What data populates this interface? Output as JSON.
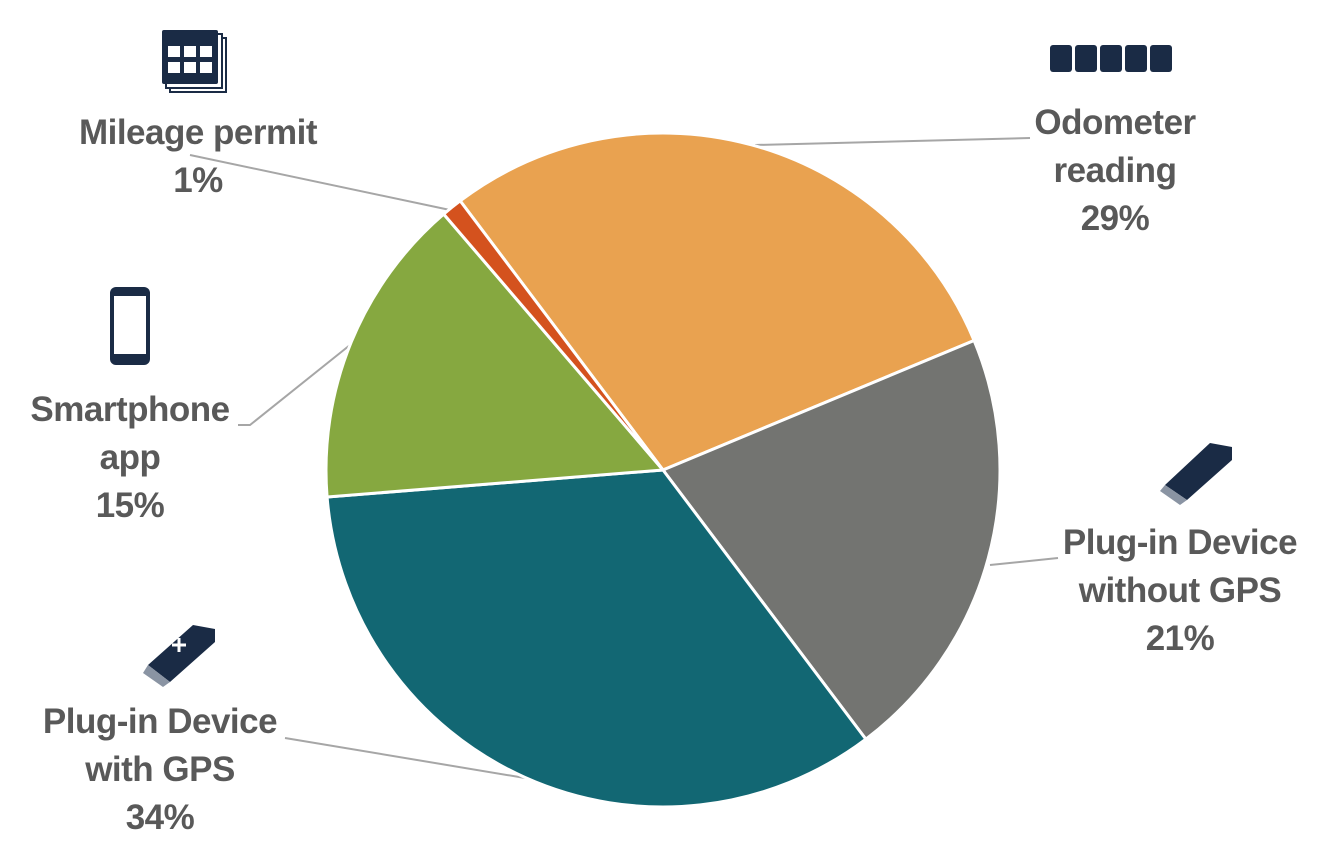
{
  "chart_data": {
    "type": "pie",
    "categories": [
      "Odometer reading",
      "Plug-in Device without GPS",
      "Plug-in Device with GPS",
      "Smartphone app",
      "Mileage permit"
    ],
    "values": [
      29,
      21,
      34,
      15,
      1
    ],
    "value_labels": [
      "29%",
      "21%",
      "34%",
      "15%",
      "1%"
    ],
    "colors": [
      "#E9A250",
      "#737471",
      "#126773",
      "#86A840",
      "#D4521E"
    ],
    "start_angle": -37
  }
}
